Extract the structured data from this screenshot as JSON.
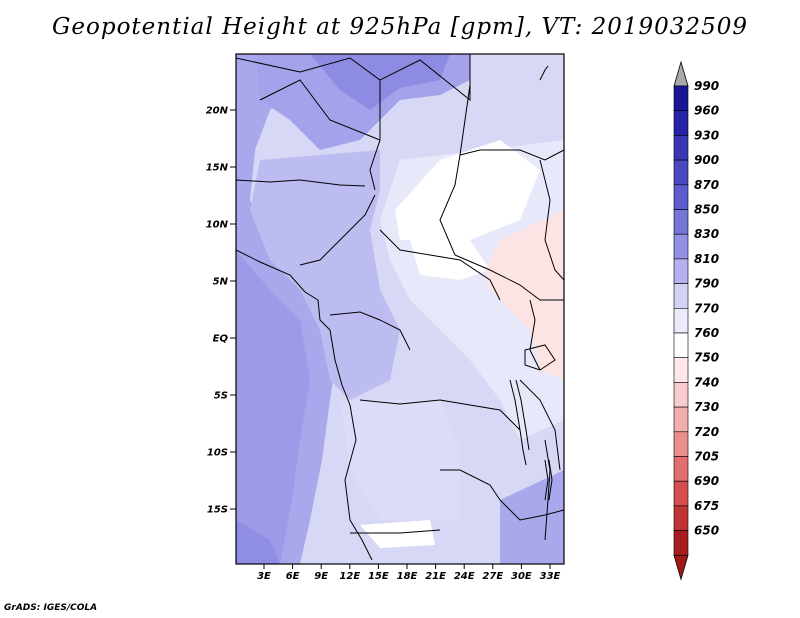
{
  "title": "Geopotential Height at 925hPa [gpm], VT: 2019032509",
  "footer": "GrADS: IGES/COLA",
  "map": {
    "lat_labels": [
      "20N",
      "15N",
      "10N",
      "5N",
      "EQ",
      "5S",
      "10S",
      "15S"
    ],
    "lon_labels": [
      "3E",
      "6E",
      "9E",
      "12E",
      "15E",
      "18E",
      "21E",
      "24E",
      "27E",
      "30E",
      "33E"
    ]
  },
  "colorbar": {
    "levels": [
      {
        "label": "990",
        "color": "#1a1696"
      },
      {
        "label": "960",
        "color": "#2822a6"
      },
      {
        "label": "930",
        "color": "#3a36b4"
      },
      {
        "label": "900",
        "color": "#4c48c2"
      },
      {
        "label": "870",
        "color": "#5e5cce"
      },
      {
        "label": "850",
        "color": "#7675d8"
      },
      {
        "label": "830",
        "color": "#9391e3"
      },
      {
        "label": "810",
        "color": "#b3b2ee"
      },
      {
        "label": "790",
        "color": "#d2d2f6"
      },
      {
        "label": "770",
        "color": "#ebebfb"
      },
      {
        "label": "760",
        "color": "#ffffff"
      },
      {
        "label": "750",
        "color": "#fde8e8"
      },
      {
        "label": "740",
        "color": "#f8cccc"
      },
      {
        "label": "730",
        "color": "#f2adad"
      },
      {
        "label": "720",
        "color": "#eb8e8e"
      },
      {
        "label": "705",
        "color": "#e26e6e"
      },
      {
        "label": "690",
        "color": "#d44e4e"
      },
      {
        "label": "675",
        "color": "#c13434"
      },
      {
        "label": "650",
        "color": "#a81e1e"
      }
    ],
    "top_arrow_color": "#a8a8a8",
    "bottom_arrow_color": "#a01818"
  }
}
